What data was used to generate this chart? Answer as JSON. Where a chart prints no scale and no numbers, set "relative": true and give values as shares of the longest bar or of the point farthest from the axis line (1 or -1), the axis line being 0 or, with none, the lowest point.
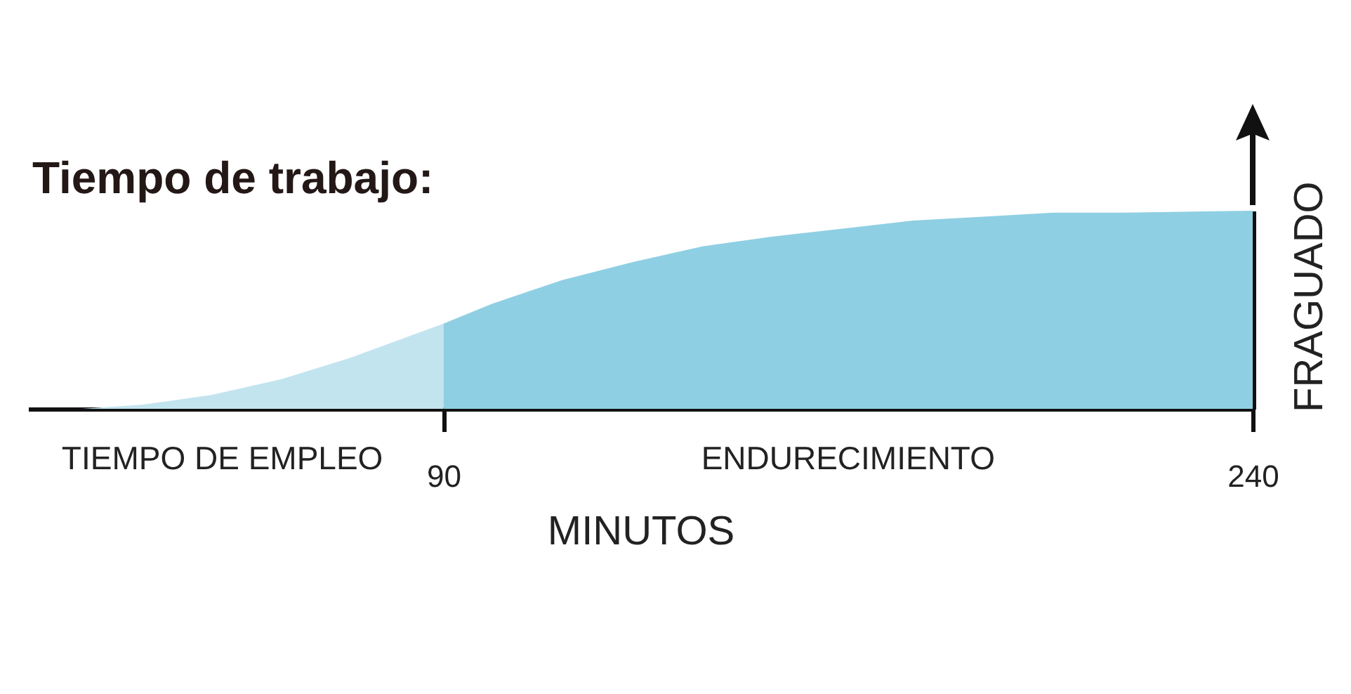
{
  "chart_data": {
    "type": "area",
    "title": "Tiempo de trabajo:",
    "xlabel": "MINUTOS",
    "ylabel": "FRAGUADO",
    "relative": true,
    "xlim": [
      13,
      240
    ],
    "xticks": [
      90,
      240
    ],
    "tick_labels": "x",
    "series": [
      {
        "color": "#c2e4ef",
        "x": [
          13,
          23,
          34,
          47,
          60,
          73,
          90
        ],
        "values": [
          0,
          0,
          0.02,
          0.07,
          0.15,
          0.26,
          0.43
        ]
      },
      {
        "color": "#8fcfe3",
        "x": [
          90,
          99,
          112,
          125,
          138,
          151,
          164,
          177,
          190,
          203,
          216,
          240
        ],
        "values": [
          0.43,
          0.53,
          0.65,
          0.74,
          0.82,
          0.87,
          0.91,
          0.95,
          0.97,
          0.99,
          0.99,
          1
        ]
      }
    ],
    "annotations": [
      {
        "text": "TIEMPO DE EMPLEO",
        "x": 49,
        "y": 0
      },
      {
        "text": "ENDURECIMIENTO",
        "x": 165,
        "y": 0
      }
    ]
  }
}
